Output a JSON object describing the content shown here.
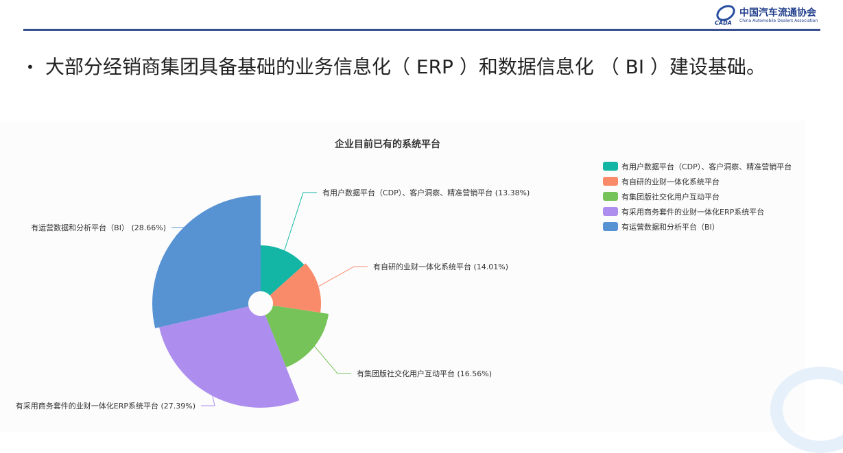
{
  "header": {
    "logo_cn": "中国汽车流通协会",
    "logo_en": "China Automobile Dealers Association",
    "logo_abbr": "CADA"
  },
  "bullet": "大部分经销商集团具备基础的业务信息化（ ERP ）和数据信息化 （ BI ）建设基础。",
  "chart_data": {
    "type": "pie",
    "variant": "rose",
    "title": "企业目前已有的系统平台",
    "legend_position": "top-right",
    "categories": [
      "有用户数据平台（CDP）、客户洞察、精准营销平台",
      "有自研的业财一体化系统平台",
      "有集团版社交化用户互动平台",
      "有采用商务套件的业财一体化ERP系统平台",
      "有运营数据和分析平台（BI）"
    ],
    "values": [
      13.38,
      14.01,
      16.56,
      27.39,
      28.66
    ],
    "labels": [
      "有用户数据平台（CDP）、客户洞察、精准营销平台 (13.38%)",
      "有自研的业财一体化系统平台 (14.01%)",
      "有集团版社交化用户互动平台 (16.56%)",
      "有采用商务套件的业财一体化ERP系统平台 (27.39%)",
      "有运营数据和分析平台（BI） (28.66%)"
    ],
    "colors": [
      "#13b5a4",
      "#f98b6b",
      "#76c35a",
      "#ad8eee",
      "#5792d3"
    ]
  }
}
